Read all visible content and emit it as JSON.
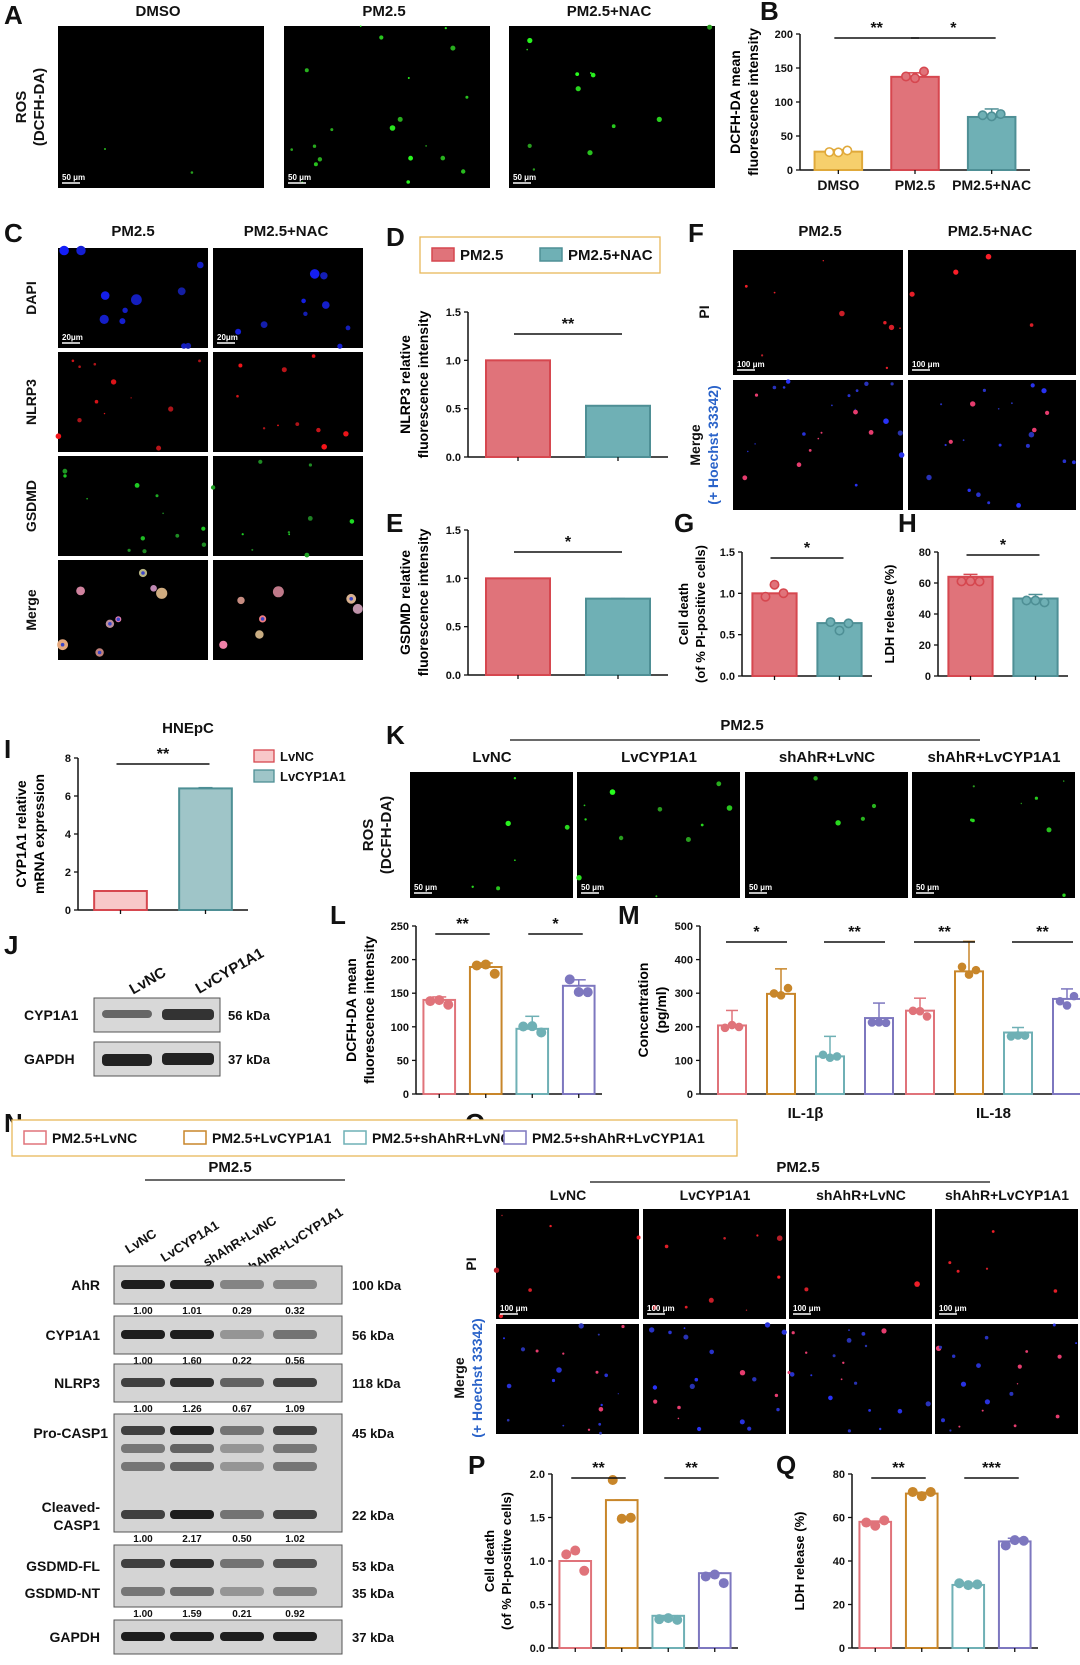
{
  "panels": {
    "A": {
      "letter": "A",
      "cols": [
        "DMSO",
        "PM2.5",
        "PM2.5+NAC"
      ],
      "ylab1": "ROS",
      "ylab2": "(DCFH-DA)",
      "scale": "50 μm"
    },
    "C": {
      "letter": "C",
      "cols": [
        "PM2.5",
        "PM2.5+NAC"
      ],
      "rows": [
        "DAPI",
        "NLRP3",
        "GSDMD",
        "Merge"
      ],
      "scale": "20μm"
    },
    "F": {
      "letter": "F",
      "cols": [
        "PM2.5",
        "PM2.5+NAC"
      ],
      "rows": [
        "PI",
        "Merge"
      ],
      "hoechst": "(+ Hoechst 33342)",
      "scale": "100 μm"
    },
    "I": {
      "letter": "I",
      "title": "HNEpC"
    },
    "J": {
      "letter": "J",
      "lanes": [
        "LvNC",
        "LvCYP1A1"
      ],
      "bands": [
        {
          "name": "CYP1A1",
          "kda": "56 kDa"
        },
        {
          "name": "GAPDH",
          "kda": "37 kDa"
        }
      ]
    },
    "K": {
      "letter": "K",
      "group": "PM2.5",
      "cols": [
        "LvNC",
        "LvCYP1A1",
        "shAhR+LvNC",
        "shAhR+LvCYP1A1"
      ],
      "ylab1": "ROS",
      "ylab2": "(DCFH-DA)",
      "scale": "50 μm"
    },
    "N": {
      "letter": "N",
      "group": "PM2.5",
      "lanes": [
        "LvNC",
        "LvCYP1A1",
        "shAhR+LvNC",
        "shAhR+LvCYP1A1"
      ],
      "blots": [
        {
          "names": [
            "AhR"
          ],
          "kdas": [
            "100 kDa"
          ],
          "quant": [
            "1.00",
            "1.01",
            "0.29",
            "0.32"
          ]
        },
        {
          "names": [
            "CYP1A1"
          ],
          "kdas": [
            "56 kDa"
          ],
          "quant": [
            "1.00",
            "1.60",
            "0.22",
            "0.56"
          ]
        },
        {
          "names": [
            "NLRP3"
          ],
          "kdas": [
            "118 kDa"
          ],
          "quant": [
            "1.00",
            "1.26",
            "0.67",
            "1.09"
          ]
        },
        {
          "names": [
            "Pro-CASP1",
            "Cleaved-",
            "CASP1"
          ],
          "kdas": [
            "45 kDa",
            "22 kDa"
          ],
          "quant": [
            "1.00",
            "2.17",
            "0.50",
            "1.02"
          ]
        },
        {
          "names": [
            "GSDMD-FL",
            "GSDMD-NT"
          ],
          "kdas": [
            "53 kDa",
            "35 kDa"
          ],
          "quant": [
            "1.00",
            "1.59",
            "0.21",
            "0.92"
          ]
        },
        {
          "names": [
            "GAPDH"
          ],
          "kdas": [
            "37 kDa"
          ],
          "quant": []
        }
      ]
    },
    "O": {
      "letter": "O",
      "group": "PM2.5",
      "cols": [
        "LvNC",
        "LvCYP1A1",
        "shAhR+LvNC",
        "shAhR+LvCYP1A1"
      ],
      "rows": [
        "PI",
        "Merge"
      ],
      "hoechst": "(+ Hoechst 33342)",
      "scale": "100 μm"
    }
  },
  "legends": {
    "D": {
      "items": [
        "PM2.5",
        "PM2.5+NAC"
      ]
    },
    "I": {
      "items": [
        "LvNC",
        "LvCYP1A1"
      ]
    },
    "LM": {
      "items": [
        "PM2.5+LvNC",
        "PM2.5+LvCYP1A1",
        "PM2.5+shAhR+LvNC",
        "PM2.5+shAhR+LvCYP1A1"
      ]
    }
  },
  "colors": {
    "dmso": "#f6cf6c",
    "red": "#e0737a",
    "teal": "#6fb0b5",
    "orange": "#c8862a",
    "purple": "#7d77bf",
    "redEdge": "#d6474f",
    "tealEdge": "#4e8f95"
  },
  "chart_data": [
    {
      "id": "B",
      "letter": "B",
      "type": "bar",
      "categories": [
        "DMSO",
        "PM2.5",
        "PM2.5+NAC"
      ],
      "values": [
        27,
        137,
        78
      ],
      "ylabel": "DCFH-DA mean fluorescence intensity",
      "ylim": [
        0,
        200
      ],
      "yticks": [
        0,
        50,
        100,
        150,
        200
      ],
      "sig": [
        "**",
        "*"
      ]
    },
    {
      "id": "D",
      "letter": "D",
      "type": "bar",
      "categories": [
        "PM2.5",
        "PM2.5+NAC"
      ],
      "values": [
        1.0,
        0.53
      ],
      "ylabel": "NLRP3 relative fluorescence intensity",
      "ylim": [
        0,
        1.5
      ],
      "yticks": [
        "0.0",
        "0.5",
        "1.0",
        "1.5"
      ],
      "sig": [
        "**"
      ]
    },
    {
      "id": "E",
      "letter": "E",
      "type": "bar",
      "categories": [
        "PM2.5",
        "PM2.5+NAC"
      ],
      "values": [
        1.0,
        0.79
      ],
      "ylabel": "GSDMD relative fluorescence intensity",
      "ylim": [
        0,
        1.5
      ],
      "yticks": [
        "0.0",
        "0.5",
        "1.0",
        "1.5"
      ],
      "sig": [
        "*"
      ]
    },
    {
      "id": "G",
      "letter": "G",
      "type": "bar",
      "categories": [
        "PM2.5",
        "PM2.5+NAC"
      ],
      "values": [
        1.0,
        0.64
      ],
      "ylabel": "Cell death (of % PI-positive cells)",
      "ylim": [
        0,
        1.5
      ],
      "yticks": [
        "0.0",
        "0.5",
        "1.0",
        "1.5"
      ],
      "sig": [
        "*"
      ]
    },
    {
      "id": "H",
      "letter": "H",
      "type": "bar",
      "categories": [
        "PM2.5",
        "PM2.5+NAC"
      ],
      "values": [
        64,
        50
      ],
      "ylabel": "LDH release (%)",
      "ylim": [
        0,
        80
      ],
      "yticks": [
        0,
        20,
        40,
        60,
        80
      ],
      "sig": [
        "*"
      ]
    },
    {
      "id": "I",
      "letter": "I",
      "type": "bar",
      "categories": [
        "LvNC",
        "LvCYP1A1"
      ],
      "values": [
        1.0,
        6.4
      ],
      "ylabel": "CYP1A1 relative mRNA expression",
      "ylim": [
        0,
        8
      ],
      "yticks": [
        0,
        2,
        4,
        6,
        8
      ],
      "sig": [
        "**"
      ]
    },
    {
      "id": "L",
      "letter": "L",
      "type": "bar",
      "categories": [
        "PM2.5+LvNC",
        "PM2.5+LvCYP1A1",
        "PM2.5+shAhR+LvNC",
        "PM2.5+shAhR+LvCYP1A1"
      ],
      "values": [
        140,
        189,
        97,
        161
      ],
      "ylabel": "DCFH-DA mean fluorescence intensity",
      "ylim": [
        0,
        250
      ],
      "yticks": [
        0,
        50,
        100,
        150,
        200,
        250
      ],
      "sig": [
        "**",
        "*"
      ]
    },
    {
      "id": "M",
      "letter": "M",
      "type": "bar",
      "categories": [
        "IL-1β",
        "IL-18"
      ],
      "series": [
        {
          "name": "PM2.5+LvNC",
          "values": [
            204,
            248
          ]
        },
        {
          "name": "PM2.5+LvCYP1A1",
          "values": [
            298,
            365
          ]
        },
        {
          "name": "PM2.5+shAhR+LvNC",
          "values": [
            112,
            183
          ]
        },
        {
          "name": "PM2.5+shAhR+LvCYP1A1",
          "values": [
            226,
            283
          ]
        }
      ],
      "ylabel": "Concentration (pg/ml)",
      "ylim": [
        0,
        500
      ],
      "yticks": [
        0,
        100,
        200,
        300,
        400,
        500
      ],
      "sig": [
        "*",
        "**",
        "**",
        "**"
      ]
    },
    {
      "id": "P",
      "letter": "P",
      "type": "bar",
      "categories": [
        "PM2.5+LvNC",
        "PM2.5+LvCYP1A1",
        "PM2.5+shAhR+LvNC",
        "PM2.5+shAhR+LvCYP1A1"
      ],
      "values": [
        1.0,
        1.7,
        0.37,
        0.86
      ],
      "ylabel": "Cell death (of % PI-positive cells)",
      "ylim": [
        0,
        2.0
      ],
      "yticks": [
        "0.0",
        "0.5",
        "1.0",
        "1.5",
        "2.0"
      ],
      "sig": [
        "**",
        "**"
      ]
    },
    {
      "id": "Q",
      "letter": "Q",
      "type": "bar",
      "categories": [
        "PM2.5+LvNC",
        "PM2.5+LvCYP1A1",
        "PM2.5+shAhR+LvNC",
        "PM2.5+shAhR+LvCYP1A1"
      ],
      "values": [
        58,
        71,
        29,
        49
      ],
      "ylabel": "LDH release (%)",
      "ylim": [
        0,
        80
      ],
      "yticks": [
        0,
        20,
        40,
        60,
        80
      ],
      "sig": [
        "**",
        "***"
      ]
    }
  ]
}
